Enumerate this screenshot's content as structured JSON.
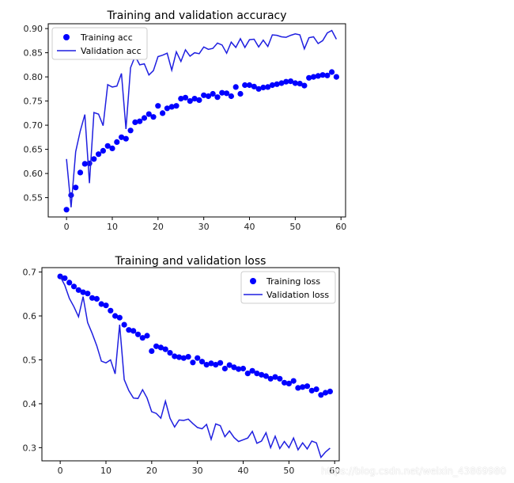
{
  "figure": {
    "watermark": "https://blog.csdn.net/weixin_43869980",
    "colors": {
      "train": "#0000ff",
      "val": "#1f1fe0"
    }
  },
  "chart_data": [
    {
      "type": "line",
      "title": "Training and validation accuracy",
      "xlabel": "",
      "ylabel": "",
      "xlim": [
        -4,
        61
      ],
      "ylim": [
        0.51,
        0.91
      ],
      "xticks": [
        0,
        10,
        20,
        30,
        40,
        50,
        60
      ],
      "yticks": [
        0.55,
        0.6,
        0.65,
        0.7,
        0.75,
        0.8,
        0.85,
        0.9
      ],
      "legend": "upper-left",
      "series": [
        {
          "name": "Training acc",
          "style": "points",
          "x": [
            0,
            1,
            2,
            3,
            4,
            5,
            6,
            7,
            8,
            9,
            10,
            11,
            12,
            13,
            14,
            15,
            16,
            17,
            18,
            19,
            20,
            21,
            22,
            23,
            24,
            25,
            26,
            27,
            28,
            29,
            30,
            31,
            32,
            33,
            34,
            35,
            36,
            37,
            38,
            39,
            40,
            41,
            42,
            43,
            44,
            45,
            46,
            47,
            48,
            49,
            50,
            51,
            52,
            53,
            54,
            55,
            56,
            57,
            58,
            59
          ],
          "y": [
            0.525,
            0.555,
            0.571,
            0.602,
            0.62,
            0.621,
            0.63,
            0.64,
            0.647,
            0.657,
            0.652,
            0.665,
            0.675,
            0.672,
            0.689,
            0.706,
            0.708,
            0.715,
            0.723,
            0.717,
            0.74,
            0.725,
            0.735,
            0.738,
            0.74,
            0.755,
            0.757,
            0.75,
            0.755,
            0.752,
            0.762,
            0.76,
            0.765,
            0.758,
            0.767,
            0.766,
            0.76,
            0.779,
            0.765,
            0.783,
            0.783,
            0.78,
            0.775,
            0.778,
            0.779,
            0.783,
            0.785,
            0.787,
            0.79,
            0.791,
            0.787,
            0.786,
            0.782,
            0.798,
            0.8,
            0.802,
            0.804,
            0.803,
            0.81,
            0.8
          ]
        },
        {
          "name": "Validation acc",
          "style": "line",
          "x": [
            0,
            1,
            2,
            3,
            4,
            5,
            6,
            7,
            8,
            9,
            10,
            11,
            12,
            13,
            14,
            15,
            16,
            17,
            18,
            19,
            20,
            21,
            22,
            23,
            24,
            25,
            26,
            27,
            28,
            29,
            30,
            31,
            32,
            33,
            34,
            35,
            36,
            37,
            38,
            39,
            40,
            41,
            42,
            43,
            44,
            45,
            46,
            47,
            48,
            49,
            50,
            51,
            52,
            53,
            54,
            55,
            56,
            57,
            58,
            59
          ],
          "y": [
            0.63,
            0.53,
            0.645,
            0.688,
            0.722,
            0.58,
            0.726,
            0.723,
            0.699,
            0.784,
            0.779,
            0.781,
            0.807,
            0.692,
            0.819,
            0.843,
            0.825,
            0.827,
            0.804,
            0.813,
            0.842,
            0.845,
            0.849,
            0.814,
            0.852,
            0.832,
            0.856,
            0.843,
            0.85,
            0.848,
            0.862,
            0.857,
            0.859,
            0.87,
            0.866,
            0.849,
            0.872,
            0.861,
            0.879,
            0.861,
            0.877,
            0.878,
            0.862,
            0.876,
            0.863,
            0.887,
            0.886,
            0.883,
            0.882,
            0.886,
            0.889,
            0.887,
            0.858,
            0.881,
            0.883,
            0.869,
            0.875,
            0.891,
            0.896,
            0.878
          ]
        }
      ]
    },
    {
      "type": "line",
      "title": "Training and validation loss",
      "xlabel": "",
      "ylabel": "",
      "xlim": [
        -4,
        61
      ],
      "ylim": [
        0.27,
        0.71
      ],
      "xticks": [
        0,
        10,
        20,
        30,
        40,
        50,
        60
      ],
      "yticks": [
        0.3,
        0.4,
        0.5,
        0.6,
        0.7
      ],
      "legend": "upper-right",
      "series": [
        {
          "name": "Training loss",
          "style": "points",
          "x": [
            0,
            1,
            2,
            3,
            4,
            5,
            6,
            7,
            8,
            9,
            10,
            11,
            12,
            13,
            14,
            15,
            16,
            17,
            18,
            19,
            20,
            21,
            22,
            23,
            24,
            25,
            26,
            27,
            28,
            29,
            30,
            31,
            32,
            33,
            34,
            35,
            36,
            37,
            38,
            39,
            40,
            41,
            42,
            43,
            44,
            45,
            46,
            47,
            48,
            49,
            50,
            51,
            52,
            53,
            54,
            55,
            56,
            57,
            58,
            59
          ],
          "y": [
            0.69,
            0.686,
            0.676,
            0.667,
            0.659,
            0.654,
            0.651,
            0.641,
            0.639,
            0.627,
            0.624,
            0.612,
            0.6,
            0.596,
            0.58,
            0.568,
            0.566,
            0.558,
            0.55,
            0.555,
            0.52,
            0.531,
            0.528,
            0.524,
            0.516,
            0.508,
            0.506,
            0.504,
            0.507,
            0.494,
            0.504,
            0.496,
            0.489,
            0.492,
            0.489,
            0.493,
            0.48,
            0.488,
            0.483,
            0.479,
            0.48,
            0.469,
            0.475,
            0.469,
            0.466,
            0.463,
            0.457,
            0.461,
            0.457,
            0.448,
            0.446,
            0.452,
            0.436,
            0.438,
            0.44,
            0.43,
            0.433,
            0.42,
            0.425,
            0.428
          ]
        },
        {
          "name": "Validation loss",
          "style": "line",
          "x": [
            0,
            1,
            2,
            3,
            4,
            5,
            6,
            7,
            8,
            9,
            10,
            11,
            12,
            13,
            14,
            15,
            16,
            17,
            18,
            19,
            20,
            21,
            22,
            23,
            24,
            25,
            26,
            27,
            28,
            29,
            30,
            31,
            32,
            33,
            34,
            35,
            36,
            37,
            38,
            39,
            40,
            41,
            42,
            43,
            44,
            45,
            46,
            47,
            48,
            49,
            50,
            51,
            52,
            53,
            54,
            55,
            56,
            57,
            58,
            59
          ],
          "y": [
            0.69,
            0.67,
            0.64,
            0.621,
            0.598,
            0.644,
            0.585,
            0.56,
            0.532,
            0.497,
            0.493,
            0.5,
            0.468,
            0.58,
            0.455,
            0.43,
            0.413,
            0.412,
            0.432,
            0.413,
            0.382,
            0.378,
            0.367,
            0.406,
            0.367,
            0.347,
            0.363,
            0.362,
            0.365,
            0.355,
            0.346,
            0.343,
            0.353,
            0.319,
            0.354,
            0.35,
            0.325,
            0.338,
            0.323,
            0.314,
            0.318,
            0.322,
            0.337,
            0.31,
            0.315,
            0.334,
            0.3,
            0.326,
            0.298,
            0.314,
            0.3,
            0.322,
            0.295,
            0.311,
            0.297,
            0.315,
            0.311,
            0.278,
            0.29,
            0.299
          ]
        }
      ]
    }
  ]
}
